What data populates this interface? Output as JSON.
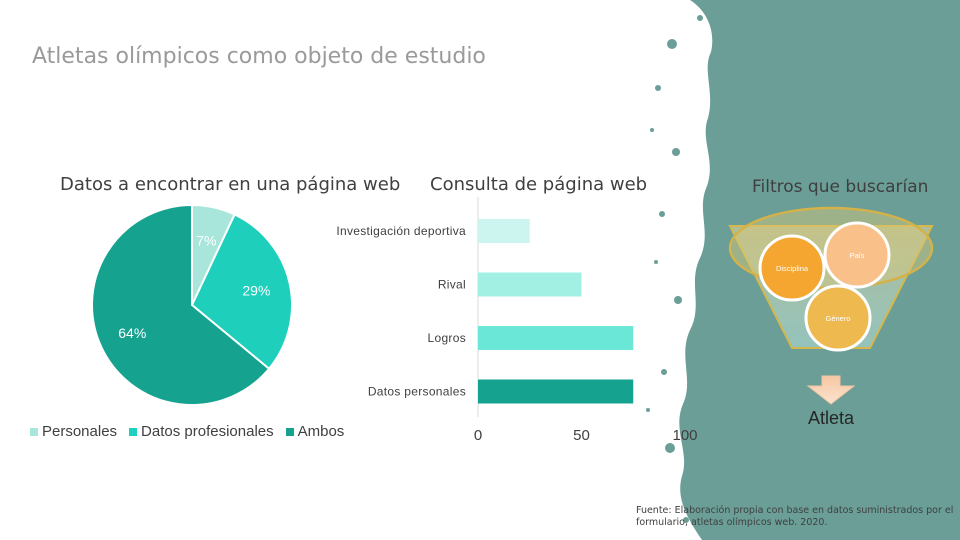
{
  "slide": {
    "title": "Atletas olímpicos como objeto de estudio",
    "source_note": "Fuente: Elaboración propia con base en datos suministrados por el formulario, atletas olímpicos web. 2020."
  },
  "colors": {
    "splash": "#6a9e97",
    "personales": "#a8e6dc",
    "profesionales": "#1ecfbb",
    "ambos": "#15a390"
  },
  "chart_data": [
    {
      "type": "pie",
      "title": "Datos a encontrar en una página web",
      "slices": [
        {
          "label": "Personales",
          "value": 7,
          "value_label": "7%",
          "color": "#a8e6dc"
        },
        {
          "label": "Datos profesionales",
          "value": 29,
          "value_label": "29%",
          "color": "#1ecfbb"
        },
        {
          "label": "Ambos",
          "value": 64,
          "value_label": "64%",
          "color": "#15a390"
        }
      ],
      "legend_position": "bottom"
    },
    {
      "type": "bar",
      "orientation": "horizontal",
      "title": "Consulta de página web",
      "categories": [
        "Investigación deportiva",
        "Rival",
        "Logros",
        "Datos personales"
      ],
      "values": [
        25,
        50,
        75,
        75
      ],
      "colors": [
        "#cdf5ef",
        "#a2efe4",
        "#6be7d8",
        "#15a390"
      ],
      "xlim": [
        0,
        100
      ],
      "xticks": [
        "0",
        "50",
        "100"
      ],
      "grid": false
    }
  ],
  "funnel": {
    "title": "Filtros que buscarían",
    "items": [
      "Disciplina",
      "País",
      "Género"
    ],
    "result": "Atleta"
  }
}
